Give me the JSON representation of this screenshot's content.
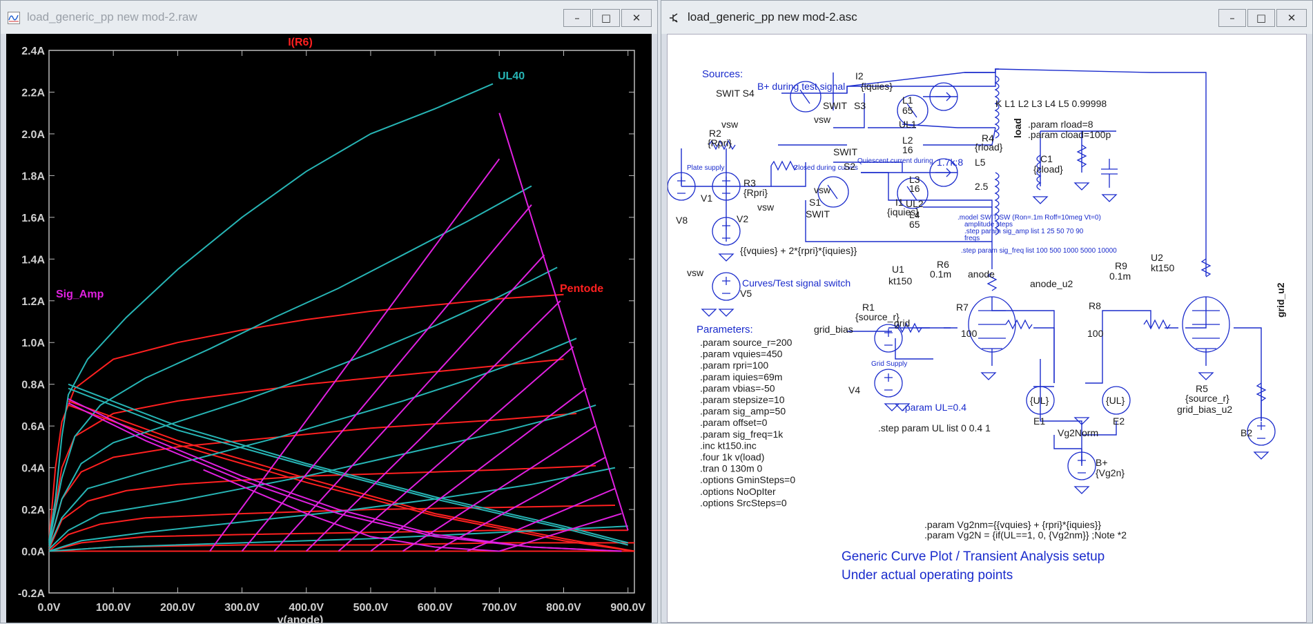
{
  "windows": [
    {
      "title": "load_generic_pp new mod-2.raw",
      "buttons": [
        "–",
        "□",
        "✕"
      ]
    },
    {
      "title": "load_generic_pp new mod-2.asc",
      "buttons": [
        "–",
        "□",
        "✕"
      ]
    }
  ],
  "chart_data": {
    "type": "line",
    "title": "I(R6)",
    "xlabel": "v(anode)",
    "ylabel": "",
    "xlim": [
      0,
      910
    ],
    "ylim": [
      -0.2,
      2.4
    ],
    "x_tick_labels": [
      "0.0V",
      "100.0V",
      "200.0V",
      "300.0V",
      "400.0V",
      "500.0V",
      "600.0V",
      "700.0V",
      "800.0V",
      "900.0V"
    ],
    "y_tick_labels": [
      "2.4A",
      "2.2A",
      "2.0A",
      "1.8A",
      "1.6A",
      "1.4A",
      "1.2A",
      "1.0A",
      "0.8A",
      "0.6A",
      "0.4A",
      "0.2A",
      "0.0A",
      "-0.2A"
    ],
    "annotations": [
      "UL40",
      "Sig_Amp",
      "Pentode"
    ],
    "grid": false,
    "colors": {
      "ul40": "#27b5b5",
      "sig_amp": "#e020e0",
      "pentode": "#ff2020",
      "title": "#ff2020"
    },
    "series": [
      {
        "name": "UL40",
        "curves": [
          {
            "x": [
              0,
              10,
              20,
              30,
              60,
              120,
              200,
              300,
              400,
              500,
              600,
              690
            ],
            "y": [
              0.05,
              0.25,
              0.55,
              0.75,
              0.92,
              1.12,
              1.35,
              1.6,
              1.82,
              2.0,
              2.12,
              2.24
            ]
          },
          {
            "x": [
              0,
              20,
              40,
              80,
              150,
              250,
              350,
              450,
              550,
              650,
              750
            ],
            "y": [
              0.04,
              0.35,
              0.55,
              0.7,
              0.83,
              0.97,
              1.12,
              1.26,
              1.42,
              1.58,
              1.75
            ]
          },
          {
            "x": [
              0,
              20,
              50,
              100,
              200,
              300,
              400,
              500,
              600,
              700,
              790
            ],
            "y": [
              0.03,
              0.25,
              0.42,
              0.52,
              0.62,
              0.72,
              0.83,
              0.95,
              1.08,
              1.22,
              1.36
            ]
          },
          {
            "x": [
              0,
              20,
              60,
              150,
              250,
              350,
              450,
              550,
              650,
              750,
              820
            ],
            "y": [
              0.02,
              0.16,
              0.3,
              0.38,
              0.46,
              0.54,
              0.63,
              0.72,
              0.82,
              0.93,
              1.02
            ]
          },
          {
            "x": [
              0,
              30,
              80,
              200,
              300,
              400,
              500,
              600,
              700,
              800,
              850
            ],
            "y": [
              0.01,
              0.1,
              0.18,
              0.24,
              0.3,
              0.36,
              0.43,
              0.5,
              0.57,
              0.65,
              0.7
            ]
          },
          {
            "x": [
              0,
              50,
              150,
              300,
              450,
              600,
              750,
              880
            ],
            "y": [
              0.0,
              0.05,
              0.09,
              0.14,
              0.19,
              0.25,
              0.32,
              0.4
            ]
          },
          {
            "x": [
              0,
              100,
              300,
              500,
              700,
              900
            ],
            "y": [
              0.0,
              0.02,
              0.04,
              0.06,
              0.09,
              0.12
            ]
          },
          {
            "x": [
              30,
              200,
              400,
              600,
              800,
              900
            ],
            "y": [
              0.8,
              0.6,
              0.42,
              0.26,
              0.12,
              0.04
            ]
          },
          {
            "x": [
              30,
              200,
              400,
              600,
              800,
              900
            ],
            "y": [
              0.78,
              0.58,
              0.41,
              0.25,
              0.11,
              0.03
            ]
          }
        ]
      },
      {
        "name": "Sig_Amp",
        "curves": [
          {
            "x": [
              30,
              150,
              300,
              450,
              600,
              750,
              890
            ],
            "y": [
              0.73,
              0.55,
              0.36,
              0.2,
              0.08,
              0.02,
              0.0
            ]
          },
          {
            "x": [
              30,
              150,
              300,
              450,
              600,
              750,
              890
            ],
            "y": [
              0.71,
              0.53,
              0.34,
              0.18,
              0.07,
              0.02,
              0.0
            ]
          },
          {
            "x": [
              240,
              400,
              500,
              600,
              700
            ],
            "y": [
              0.39,
              0.18,
              0.07,
              0.02,
              0.0
            ]
          },
          {
            "x": [
              700,
              900
            ],
            "y": [
              2.1,
              0.1
            ]
          },
          {
            "x": [
              250,
              700
            ],
            "y": [
              0.0,
              1.88
            ]
          },
          {
            "x": [
              300,
              750
            ],
            "y": [
              0.0,
              1.66
            ]
          },
          {
            "x": [
              350,
              770
            ],
            "y": [
              0.0,
              1.42
            ]
          },
          {
            "x": [
              400,
              795
            ],
            "y": [
              0.0,
              1.2
            ]
          },
          {
            "x": [
              450,
              815
            ],
            "y": [
              0.0,
              0.98
            ]
          },
          {
            "x": [
              500,
              835
            ],
            "y": [
              0.0,
              0.78
            ]
          },
          {
            "x": [
              550,
              850
            ],
            "y": [
              0.0,
              0.6
            ]
          },
          {
            "x": [
              600,
              865
            ],
            "y": [
              0.0,
              0.45
            ]
          },
          {
            "x": [
              650,
              880
            ],
            "y": [
              0.0,
              0.3
            ]
          },
          {
            "x": [
              700,
              890
            ],
            "y": [
              0.0,
              0.18
            ]
          }
        ]
      },
      {
        "name": "Pentode",
        "curves": [
          {
            "x": [
              0,
              10,
              20,
              40,
              100,
              200,
              300,
              400,
              500,
              600,
              700,
              800
            ],
            "y": [
              0.05,
              0.4,
              0.62,
              0.78,
              0.92,
              1.0,
              1.06,
              1.11,
              1.15,
              1.18,
              1.21,
              1.23
            ]
          },
          {
            "x": [
              0,
              20,
              40,
              100,
              200,
              300,
              400,
              500,
              600,
              700,
              800
            ],
            "y": [
              0.03,
              0.4,
              0.55,
              0.66,
              0.72,
              0.76,
              0.8,
              0.83,
              0.86,
              0.89,
              0.92
            ]
          },
          {
            "x": [
              0,
              20,
              50,
              100,
              200,
              300,
              400,
              500,
              600,
              700,
              820
            ],
            "y": [
              0.02,
              0.25,
              0.38,
              0.45,
              0.5,
              0.53,
              0.56,
              0.59,
              0.61,
              0.63,
              0.66
            ]
          },
          {
            "x": [
              0,
              20,
              60,
              120,
              200,
              300,
              400,
              500,
              600,
              700,
              850
            ],
            "y": [
              0.01,
              0.15,
              0.24,
              0.29,
              0.32,
              0.34,
              0.36,
              0.37,
              0.38,
              0.39,
              0.41
            ]
          },
          {
            "x": [
              0,
              30,
              80,
              150,
              300,
              500,
              700,
              880
            ],
            "y": [
              0.0,
              0.08,
              0.13,
              0.16,
              0.18,
              0.2,
              0.21,
              0.22
            ]
          },
          {
            "x": [
              0,
              50,
              150,
              300,
              500,
              700,
              900
            ],
            "y": [
              0.0,
              0.04,
              0.07,
              0.08,
              0.09,
              0.1,
              0.1
            ]
          },
          {
            "x": [
              0,
              100,
              300,
              500,
              700,
              910
            ],
            "y": [
              0.0,
              0.02,
              0.03,
              0.03,
              0.04,
              0.04
            ]
          },
          {
            "x": [
              30,
              200,
              400,
              600,
              800,
              910
            ],
            "y": [
              0.72,
              0.53,
              0.35,
              0.18,
              0.06,
              0.0
            ]
          },
          {
            "x": [
              30,
              200,
              400,
              600,
              800,
              910
            ],
            "y": [
              0.7,
              0.51,
              0.33,
              0.17,
              0.05,
              0.0
            ]
          },
          {
            "x": [
              0,
              910
            ],
            "y": [
              0.0,
              0.0
            ]
          }
        ]
      }
    ]
  },
  "schematic": {
    "sources_label": "Sources:",
    "bplus_label": "B+ during test signal",
    "i2": {
      "name": "I2",
      "value": "{iquies}"
    },
    "swit_s4": "SWIT  S4",
    "swit_top": "SWIT",
    "s3": "S3",
    "swit_mid": "SWIT",
    "r2": {
      "name": "R2",
      "value": "{Rpri}"
    },
    "vsw_labels": [
      "vsw",
      "vsw",
      "vsw",
      "vsw",
      "vsw"
    ],
    "l1": {
      "name": "L1",
      "value": "65"
    },
    "ul1": "UL1",
    "l2": {
      "name": "L2",
      "value": "16"
    },
    "ratio": "1.7k:8",
    "coupling": "K L1 L2 L3 L4 L5 0.99998",
    "param_rload": ".param rload=8",
    "param_cload": ".param cload=100p",
    "load_label": "load",
    "r4": {
      "name": "R4",
      "value": "{rload}"
    },
    "l5": {
      "name": "L5",
      "value": "2.5"
    },
    "c1": {
      "name": "C1",
      "value": "{cload}"
    },
    "plate_supply": "Plate supply",
    "closed_during": "Closed during curves",
    "quiescent": "Quiescent current during",
    "s2": "S2",
    "r3": {
      "name": "R3",
      "value": "{Rpri}"
    },
    "v1": "V1",
    "v8": "V8",
    "v2": "V2",
    "s1": {
      "name": "S1",
      "value": "SWIT"
    },
    "i1": {
      "name": "I1",
      "value": "{iquies}"
    },
    "l3": {
      "name": "L3",
      "value": "16"
    },
    "ul2": "UL2",
    "l4": {
      "name": "L4",
      "value": "65"
    },
    "model_swit": ".model SWIT SW (Ron=.1m Roff=10meg Vt=0)",
    "amp_steps": "amplitude steps",
    "step_sig_amp": ".step param sig_amp list 1 25 50 70 90",
    "freqs": "freqs",
    "step_sig_freq": ".step param sig_freq list 100 500 1000 5000 10000",
    "vquies_expr": "{{vquies} + 2*{rpri}*{iquies}}",
    "v5": {
      "name": "V5",
      "net": "vsw"
    },
    "curves_switch": "Curves/Test signal switch",
    "u1": {
      "name": "U1",
      "model": "kt150"
    },
    "r6": {
      "name": "R6",
      "value": "0.1m"
    },
    "anode": "anode",
    "r1": {
      "name": "R1",
      "value": "{source_r}"
    },
    "grid": "grid",
    "r7": {
      "name": "R7",
      "value": "100"
    },
    "grid_bias": "grid_bias",
    "v4": "V4",
    "grid_supply": "Grid Supply",
    "u2": {
      "name": "U2",
      "model": "kt150"
    },
    "r9": {
      "name": "R9",
      "value": "0.1m"
    },
    "anode_u2": "anode_u2",
    "grid_u2": "grid_u2",
    "r8": {
      "name": "R8",
      "value": "100"
    },
    "r5": {
      "name": "R5",
      "value": "{source_r}"
    },
    "grid_bias_u2": "grid_bias_u2",
    "b2": "B2",
    "e1": {
      "name": "E1",
      "value": "{UL}"
    },
    "e2": {
      "name": "E2",
      "value": "{UL}"
    },
    "vg2norm": "Vg2Norm",
    "bplus": {
      "name": "B+",
      "value": "{Vg2n}"
    },
    "param_ul": ".param UL=0.4",
    "step_ul": ".step param UL list 0 0.4 1",
    "parameters_label": "Parameters:",
    "parameters": [
      ".param source_r=200",
      ".param vquies=450",
      ".param rpri=100",
      ".param iquies=69m",
      ".param vbias=-50",
      ".param stepsize=10",
      ".param sig_amp=50",
      ".param offset=0",
      ".param sig_freq=1k",
      ".inc kt150.inc",
      ".four 1k v(load)",
      ".tran 0 130m 0",
      ".options GminSteps=0",
      ".options NoOpIter",
      ".options SrcSteps=0"
    ],
    "vg2nm": ".param Vg2nm={{vquies} + {rpri}*{iquies}}",
    "vg2n": ".param Vg2N = {if(UL==1, 0, {Vg2nm}}    ;Note *2",
    "heading_line1": "Generic Curve Plot / Transient Analysis setup",
    "heading_line2": "Under actual operating points"
  }
}
